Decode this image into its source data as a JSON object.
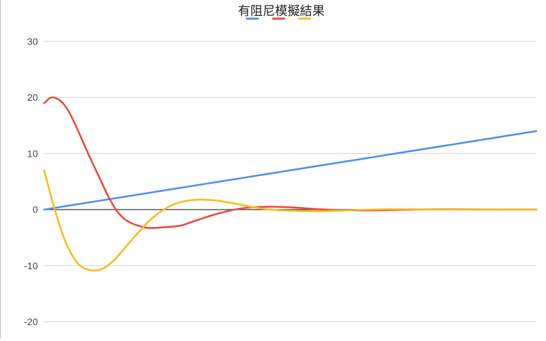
{
  "chart_data": {
    "type": "line",
    "title": "有阻尼模擬結果",
    "xlabel": "",
    "ylabel": "",
    "ylim": [
      -20,
      30
    ],
    "yticks": [
      30,
      20,
      10,
      0,
      -10,
      -20
    ],
    "ytick_labels": [
      "30",
      "20",
      "10",
      "0",
      "-10",
      "-20"
    ],
    "xlim": [
      0,
      100
    ],
    "grid": true,
    "legend": "top",
    "series": [
      {
        "color": "#4f8ef0",
        "x": [
          0,
          10,
          20,
          30,
          40,
          50,
          60,
          70,
          80,
          90,
          100
        ],
        "values": [
          0,
          1.4,
          2.8,
          4.2,
          5.6,
          7.0,
          8.4,
          9.8,
          11.2,
          12.6,
          14.0
        ]
      },
      {
        "color": "#e64a3d",
        "x": [
          0,
          2,
          5,
          10,
          15,
          20,
          25,
          28,
          30,
          35,
          40,
          45,
          50,
          55,
          60,
          65,
          70,
          75,
          80,
          85,
          90,
          95,
          100
        ],
        "values": [
          19,
          20,
          17.5,
          8.0,
          -0.5,
          -3.1,
          -3.1,
          -2.8,
          -2.2,
          -0.8,
          0.2,
          0.5,
          0.4,
          0.1,
          -0.1,
          -0.15,
          -0.1,
          0,
          0.05,
          0.05,
          0,
          0,
          0
        ]
      },
      {
        "color": "#f7bb1c",
        "x": [
          0,
          2,
          4,
          6,
          8,
          11,
          14,
          18,
          22,
          26,
          30,
          34,
          38,
          42,
          46,
          50,
          55,
          60,
          65,
          70,
          75,
          80,
          85,
          90,
          95,
          100
        ],
        "values": [
          7,
          0.5,
          -5.0,
          -8.6,
          -10.4,
          -10.8,
          -9.2,
          -5.2,
          -1.5,
          0.8,
          1.7,
          1.7,
          1.2,
          0.5,
          0.0,
          -0.2,
          -0.3,
          -0.2,
          -0.05,
          0.05,
          0.05,
          0.0,
          0.0,
          0.0,
          0.0,
          0.0
        ]
      }
    ]
  }
}
